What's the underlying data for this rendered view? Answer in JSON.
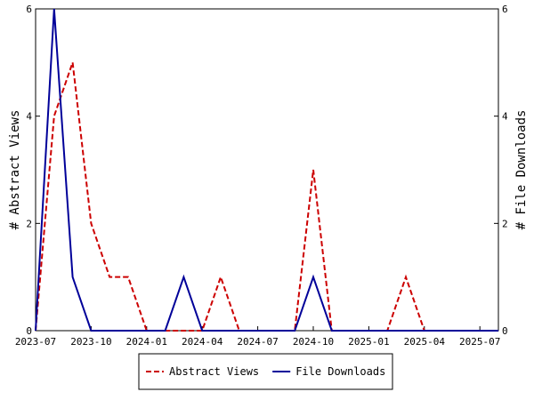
{
  "chart_data": {
    "type": "line",
    "ylabel_left": "# Abstract Views",
    "ylabel_right": "# File Downloads",
    "xlabel": "",
    "x_tick_labels": [
      "2023-07",
      "2023-10",
      "2024-01",
      "2024-04",
      "2024-07",
      "2024-10",
      "2025-01",
      "2025-04",
      "2025-07"
    ],
    "x_tick_month_index": [
      0,
      3,
      6,
      9,
      12,
      15,
      18,
      21,
      24
    ],
    "x_range_month_index": [
      0,
      25
    ],
    "y_ticks": [
      "0",
      "2",
      "4",
      "6"
    ],
    "ylim": [
      0,
      6
    ],
    "months": [
      "2023-07",
      "2023-08",
      "2023-09",
      "2023-10",
      "2023-11",
      "2023-12",
      "2024-01",
      "2024-02",
      "2024-03",
      "2024-04",
      "2024-05",
      "2024-06",
      "2024-07",
      "2024-08",
      "2024-09",
      "2024-10",
      "2024-11",
      "2024-12",
      "2025-01",
      "2025-02",
      "2025-03",
      "2025-04",
      "2025-05",
      "2025-06",
      "2025-07",
      "2025-08"
    ],
    "series": [
      {
        "name": "Abstract Views",
        "axis": "left",
        "color": "#cc0000",
        "dashed": true,
        "values": [
          0,
          4,
          5,
          2,
          1,
          1,
          0,
          0,
          0,
          0,
          1,
          0,
          0,
          0,
          0,
          3,
          0,
          0,
          0,
          0,
          1,
          0,
          0,
          0,
          0,
          0
        ]
      },
      {
        "name": "File Downloads",
        "axis": "right",
        "color": "#000099",
        "dashed": false,
        "values": [
          0,
          6,
          1,
          0,
          0,
          0,
          0,
          0,
          1,
          0,
          0,
          0,
          0,
          0,
          0,
          1,
          0,
          0,
          0,
          0,
          0,
          0,
          0,
          0,
          0,
          0
        ]
      }
    ],
    "legend_position": "bottom-center",
    "grid": false
  }
}
